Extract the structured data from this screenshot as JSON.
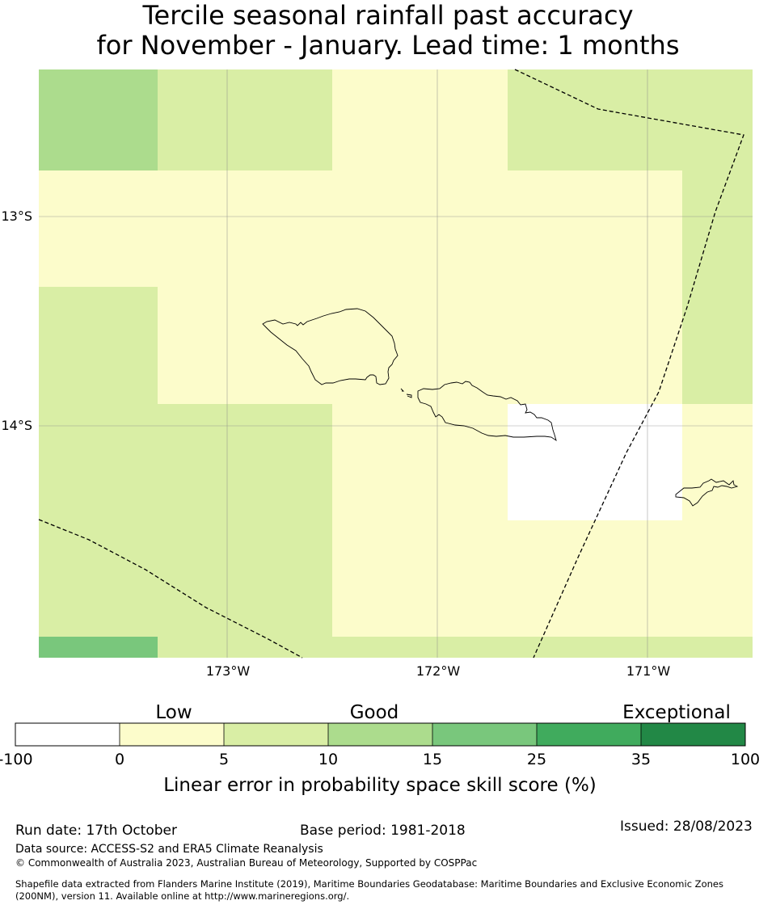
{
  "title_line1": "Tercile seasonal rainfall past accuracy",
  "title_line2": "for November - January. Lead time: 1 months",
  "map": {
    "lat_labels": [
      "13°S",
      "14°S"
    ],
    "lon_labels": [
      "173°W",
      "172°W",
      "171°W"
    ],
    "colors": {
      "c_white": "#ffffff",
      "c_0_5": "#fcfccb",
      "c_5_10": "#d9eea5",
      "c_10_15": "#acdc8d",
      "c_15_25": "#79c77c",
      "c_25_35": "#40ab5d",
      "c_35_100": "#228846"
    }
  },
  "legend": {
    "category_labels": [
      "Low",
      "Good",
      "Exceptional"
    ],
    "bins": [
      "-100",
      "0",
      "5",
      "10",
      "15",
      "25",
      "35",
      "100"
    ],
    "bin_colors": [
      "#ffffff",
      "#fcfccb",
      "#d9eea5",
      "#acdc8d",
      "#79c77c",
      "#40ab5d",
      "#228846"
    ],
    "axis_label": "Linear error in probability space skill score (%)"
  },
  "footer": {
    "run_date": "Run date: 17th October",
    "base_period": "Base period: 1981-2018",
    "issued": "Issued: 28/08/2023",
    "data_source": "Data source: ACCESS-S2 and ERA5 Climate Reanalysis",
    "copyright": "© Commonwealth of Australia 2023, Australian Bureau of Meteorology, Supported by COSPPac",
    "shapefile_line1": "Shapefile data extracted from Flanders Marine Institute (2019), Maritime Boundaries Geodatabase: Maritime Boundaries and Exclusive Economic Zones",
    "shapefile_line2": "(200NM), version 11. Available online at http://www.marineregions.org/."
  }
}
